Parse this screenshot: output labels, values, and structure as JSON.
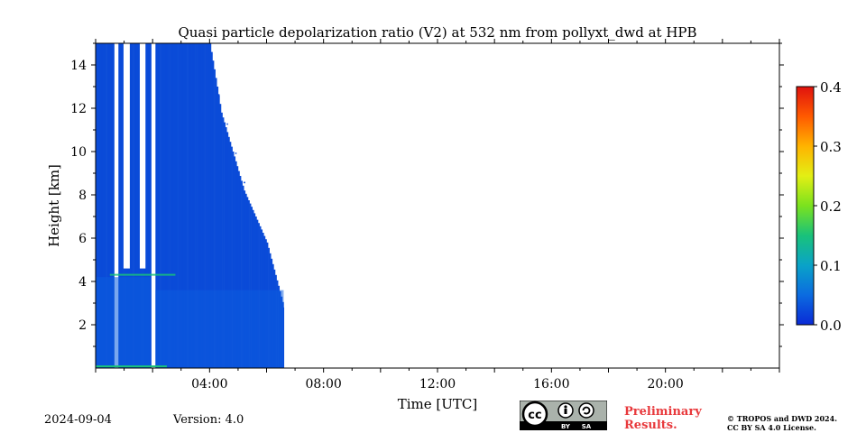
{
  "chart_data": {
    "type": "heatmap",
    "title": "Quasi particle depolarization ratio (V2) at 532 nm from pollyxt_dwd at HPB",
    "xlabel": "Time [UTC]",
    "ylabel": "Height [km]",
    "x_range_hours": [
      0,
      24
    ],
    "ylim_km": [
      0,
      15
    ],
    "x_ticks": [
      {
        "hour": 4,
        "label": "04:00"
      },
      {
        "hour": 8,
        "label": "08:00"
      },
      {
        "hour": 12,
        "label": "12:00"
      },
      {
        "hour": 16,
        "label": "16:00"
      },
      {
        "hour": 20,
        "label": "20:00"
      }
    ],
    "y_ticks": [
      {
        "km": 2,
        "label": "2"
      },
      {
        "km": 4,
        "label": "4"
      },
      {
        "km": 6,
        "label": "6"
      },
      {
        "km": 8,
        "label": "8"
      },
      {
        "km": 10,
        "label": "10"
      },
      {
        "km": 12,
        "label": "12"
      },
      {
        "km": 14,
        "label": "14"
      }
    ],
    "colorbar": {
      "min": 0.0,
      "max": 0.4,
      "ticks": [
        {
          "value": 0.0,
          "label": "0.0"
        },
        {
          "value": 0.1,
          "label": "0.1"
        },
        {
          "value": 0.2,
          "label": "0.2"
        },
        {
          "value": 0.3,
          "label": "0.3"
        },
        {
          "value": 0.4,
          "label": "0.4"
        }
      ],
      "colormap": [
        "#0a2ad6",
        "#0b6be0",
        "#0aa3c8",
        "#19c27a",
        "#7be21e",
        "#e3ef14",
        "#ffb300",
        "#ff5a00",
        "#e0120e"
      ]
    },
    "data_coverage_hours": [
      0,
      6.6
    ],
    "data_gaps_hours": [
      [
        0.65,
        0.78
      ],
      [
        1.92,
        2.1
      ]
    ],
    "dominant_value": 0.02,
    "layer_feature": {
      "height_km": 4.3,
      "value": 0.12
    }
  },
  "footer": {
    "date": "2024-09-04",
    "version": "Version: 4.0",
    "preliminary_line1": "Preliminary",
    "preliminary_line2": "Results.",
    "copyright_line1": "© TROPOS and DWD 2024.",
    "copyright_line2": "CC BY SA 4.0 License.",
    "license_badge": {
      "cc": "cc",
      "by": "BY",
      "sa": "SA"
    }
  }
}
